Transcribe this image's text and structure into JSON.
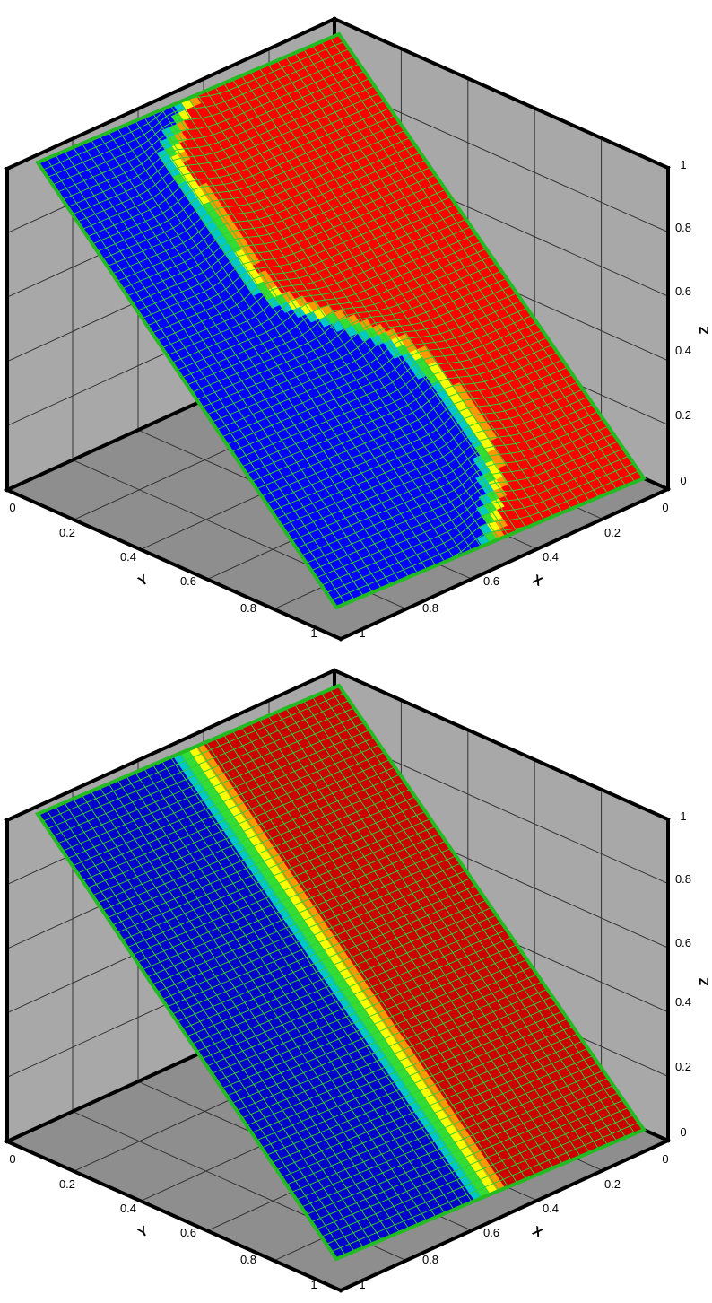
{
  "chart_data": [
    {
      "type": "surface",
      "panel": "top",
      "interface_shape": "wavy",
      "colors": {
        "low": "#0000ff",
        "high": "#ff0000",
        "mesh": "#33cc33",
        "boundary": "#22bb22",
        "wall": "#a8a8a8",
        "floor": "#8e8e8e"
      },
      "xlabel": "X",
      "ylabel": "Y",
      "zlabel": "Z",
      "xlim": [
        0,
        1
      ],
      "ylim": [
        0,
        1
      ],
      "zlim": [
        0,
        1
      ],
      "x_ticks": [
        "0",
        "0.2",
        "0.4",
        "0.6",
        "0.8",
        "1"
      ],
      "y_ticks": [
        "0",
        "0.2",
        "0.4",
        "0.6",
        "0.8",
        "1"
      ],
      "z_ticks": [
        "0",
        "0.2",
        "0.4",
        "0.6",
        "0.8",
        "1"
      ],
      "grid": true
    },
    {
      "type": "surface",
      "panel": "bottom",
      "interface_shape": "straight",
      "colors": {
        "low": "#0000cc",
        "high": "#cc0000",
        "mesh": "#33cc33",
        "boundary": "#22bb22",
        "wall": "#a8a8a8",
        "floor": "#8e8e8e"
      },
      "xlabel": "X",
      "ylabel": "Y",
      "zlabel": "Z",
      "xlim": [
        0,
        1
      ],
      "ylim": [
        0,
        1
      ],
      "zlim": [
        0,
        1
      ],
      "x_ticks": [
        "0",
        "0.2",
        "0.4",
        "0.6",
        "0.8",
        "1"
      ],
      "y_ticks": [
        "0",
        "0.2",
        "0.4",
        "0.6",
        "0.8",
        "1"
      ],
      "z_ticks": [
        "0",
        "0.2",
        "0.4",
        "0.6",
        "0.8",
        "1"
      ],
      "grid": true
    }
  ]
}
